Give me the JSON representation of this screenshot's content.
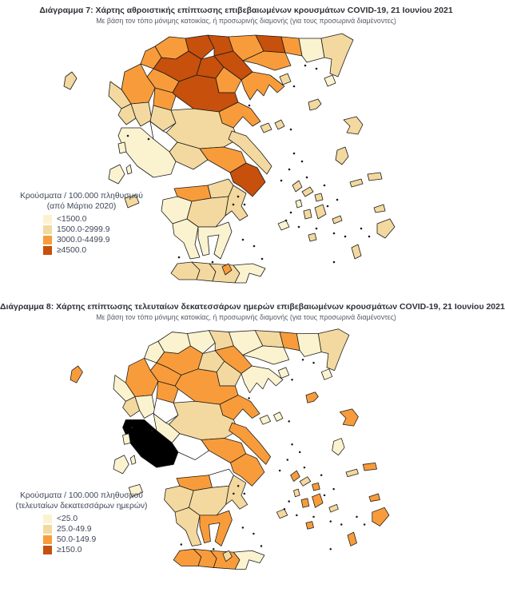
{
  "colors": {
    "category_fills": [
      "#FBF3D0",
      "#F3D99F",
      "#F89C3B",
      "#C6500C"
    ],
    "uncolored_fill": "#FFFFFF",
    "border": "#1a1a1a",
    "title_text": "#2e3138",
    "legend_text": "#3e4757"
  },
  "figure7": {
    "title": "Διάγραμμα 7: Χάρτης αθροιστικής επίπτωσης επιβεβαιωμένων κρουσμάτων COVID-19, 21 Ιουνίου 2021",
    "subtitle": "Με βάση τον τόπο μόνιμης κατοικίας, ή προσωρινής διαμονής (για τους προσωρινά διαμένοντες)",
    "legend": {
      "title_line1": "Κρούσματα / 100.000 πληθυσμού",
      "title_line2": "(από Μάρτιο 2020)",
      "items": [
        {
          "label": "<1500.0",
          "color_index": 0
        },
        {
          "label": "1500.0-2999.9",
          "color_index": 1
        },
        {
          "label": "3000.0-4499.9",
          "color_index": 2
        },
        {
          "label": "≥4500.0",
          "color_index": 3
        }
      ]
    }
  },
  "figure8": {
    "title": "Διάγραμμα 8: Χάρτης επίπτωσης τελευταίων δεκατεσσάρων ημερών επιβεβαιωμένων κρουσμάτων COVID-19, 21 Ιουνίου 2021",
    "subtitle": "Με βάση τον τόπο μόνιμης κατοικίας, ή προσωρινής διαμονής (για τους προσωρινά διαμένοντες)",
    "legend": {
      "title_line1": "Κρούσματα / 100.000 πληθυσμού",
      "title_line2": "(τελευταίων δεκατεσσάρων ημερών)",
      "items": [
        {
          "label": "<25.0",
          "color_index": 0
        },
        {
          "label": "25.0-49.9",
          "color_index": 1
        },
        {
          "label": "50.0-149.9",
          "color_index": 2
        },
        {
          "label": "≥150.0",
          "color_index": 3
        }
      ]
    }
  },
  "chart_data": [
    {
      "type": "choropleth_map",
      "figure": "figure7",
      "title": "Χάρτης αθροιστικής επίπτωσης επιβεβαιωμένων κρουσμάτων COVID-19, 21 Ιουνίου 2021",
      "unit": "Κρούσματα / 100.000 πληθυσμού (από Μάρτιο 2020)",
      "classes": [
        "<1500.0",
        "1500.0-2999.9",
        "3000.0-4499.9",
        "≥4500.0"
      ],
      "region_class": {
        "florina": 3,
        "pella": 4,
        "kilkis": 4,
        "serres": 3,
        "drama": 4,
        "xanthi": 3,
        "rhodope": 1,
        "evros": 2,
        "kavala": 3,
        "kastoria": 3,
        "kozani": 4,
        "imathia": 4,
        "thessaloniki": 4,
        "chalkidiki": 3,
        "pieria": 3,
        "grevena": 3,
        "ioannina": 3,
        "thesprotia": 2,
        "larissa": 4,
        "trikala": 3,
        "preveza": 2,
        "arta": 2,
        "karditsa": 2,
        "magnesia": 3,
        "phthiotis": 2,
        "evrytania": 0,
        "aetolia": 1,
        "phocis": 2,
        "boeotia": 3,
        "attica": 4,
        "euboea": 2,
        "corinthia": 2,
        "achaia": 3,
        "elis": 1,
        "arcadia": 2,
        "argolida": 2,
        "messinia": 1,
        "laconia": 1,
        "chania": 2,
        "rethymno": 2,
        "heraklion": 2,
        "lasithi": 1,
        "corfu": 2,
        "lefkada": 1,
        "kefalonia": 1,
        "ithaki": 1,
        "zakynthos": 2,
        "kythira": 3,
        "thasos": 2,
        "samothrace": 1,
        "limnos": 2,
        "lesbos": 2,
        "chios": 2,
        "samos": 2,
        "ikaria": 2,
        "sporades": 2,
        "alonnisos": 2,
        "andros": 2,
        "tinos": 2,
        "mykonos": 2,
        "syros": 1,
        "paros": 2,
        "naxos": 2,
        "milos": 1,
        "santorini": 2,
        "amorgos": 2,
        "kos": 2,
        "rhodes": 2,
        "karpathos": 2
      }
    },
    {
      "type": "choropleth_map",
      "figure": "figure8",
      "title": "Χάρτης επίπτωσης τελευταίων δεκατεσσάρων ημερών επιβεβαιωμένων κρουσμάτων COVID-19, 21 Ιουνίου 2021",
      "unit": "Κρούσματα / 100.000 πληθυσμού (τελευταίων δεκατεσσάρων ημερών)",
      "classes": [
        "<25.0",
        "25.0-49.9",
        "50.0-149.9",
        "≥150.0"
      ],
      "region_class": {
        "florina": 1,
        "pella": 1,
        "kilkis": 2,
        "serres": 1,
        "drama": 2,
        "xanthi": 3,
        "rhodope": 1,
        "evros": 2,
        "kavala": 1,
        "kastoria": 1,
        "kozani": 3,
        "imathia": 2,
        "thessaloniki": 3,
        "chalkidiki": 1,
        "pieria": 2,
        "grevena": 3,
        "ioannina": 3,
        "thesprotia": 1,
        "larissa": 3,
        "trikala": 3,
        "preveza": 2,
        "arta": 1,
        "karditsa": 0,
        "magnesia": 3,
        "phthiotis": 2,
        "evrytania": 1,
        "phocis": 0,
        "boeotia": 3,
        "attica": 3,
        "euboea": 3,
        "corinthia": 0,
        "achaia": 3,
        "elis": 2,
        "arcadia": 2,
        "argolida": 2,
        "messinia": 2,
        "laconia": 3,
        "chania": 3,
        "rethymno": 3,
        "heraklion": 3,
        "lasithi": 1,
        "corfu": 3,
        "lefkada": 1,
        "kefalonia": 1,
        "ithaki": 1,
        "zakynthos": 1,
        "kythira": 2,
        "thasos": 1,
        "samothrace": 1,
        "limnos": 3,
        "lesbos": 3,
        "chios": 1,
        "samos": 3,
        "ikaria": 2,
        "sporades": 1,
        "alonnisos": 1,
        "andros": 3,
        "tinos": 2,
        "mykonos": 3,
        "syros": 2,
        "paros": 3,
        "naxos": 3,
        "milos": 2,
        "santorini": 3,
        "amorgos": 2,
        "kos": 3,
        "rhodes": 3,
        "karpathos": 3
      }
    }
  ]
}
